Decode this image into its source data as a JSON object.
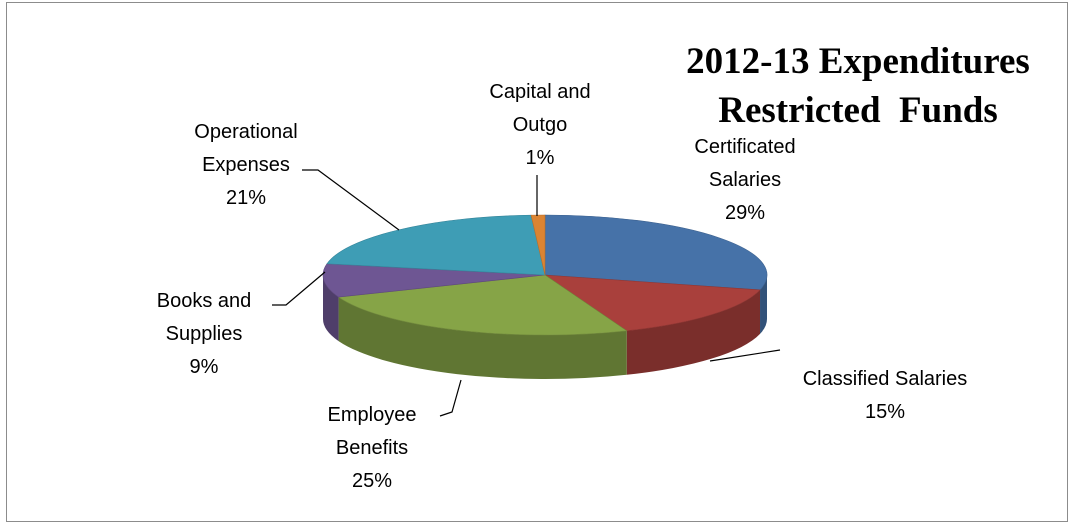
{
  "chart_data": {
    "type": "pie",
    "title_lines": [
      "2012-13 Expenditures",
      "Restricted  Funds"
    ],
    "slices": [
      {
        "label": "Certificated Salaries",
        "value": 29,
        "pct_label": "29%",
        "color": "#4672A8"
      },
      {
        "label": "Classified Salaries",
        "value": 15,
        "pct_label": "15%",
        "color": "#A9403C"
      },
      {
        "label": "Employee Benefits",
        "value": 25,
        "pct_label": "25%",
        "color": "#86A447"
      },
      {
        "label": "Books and Supplies",
        "value": 9,
        "pct_label": "9%",
        "color": "#6E5693"
      },
      {
        "label": "Operational Expenses",
        "value": 21,
        "pct_label": "21%",
        "color": "#3E9DB5"
      },
      {
        "label": "Capital and Outgo",
        "value": 1,
        "pct_label": "1%",
        "color": "#DB8433"
      }
    ],
    "label_lines": [
      [
        "Certificated",
        "Salaries",
        "29%"
      ],
      [
        "Classified Salaries",
        "15%"
      ],
      [
        "Employee",
        "Benefits",
        "25%"
      ],
      [
        "Books and",
        "Supplies",
        "9%"
      ],
      [
        "Operational",
        "Expenses",
        "21%"
      ],
      [
        "Capital and",
        "Outgo",
        "1%"
      ]
    ],
    "legend": "none"
  }
}
